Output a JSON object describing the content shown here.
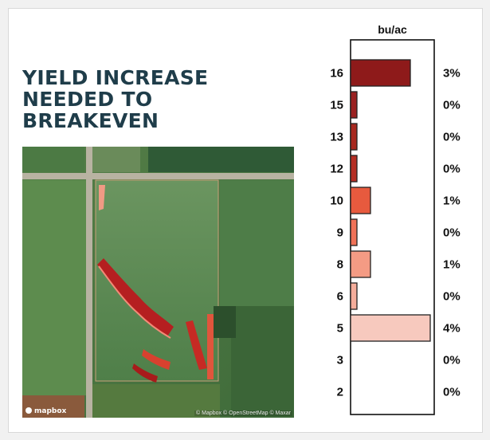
{
  "title": {
    "line1": "YIELD INCREASE",
    "line2": "NEEDED TO",
    "line3": "BREAKEVEN"
  },
  "map": {
    "logo": "mapbox",
    "attribution": "© Mapbox © OpenStreetMap © Maxar"
  },
  "colors": {
    "title": "#1f3d4a",
    "field_dark": "#3f6a3a",
    "field_light": "#5e8e4f",
    "overlay_dark": "#9e1c1c",
    "overlay_light": "#f4a38e"
  },
  "chart_data": {
    "type": "bar",
    "orientation": "horizontal",
    "unit_label": "bu/ac",
    "categories": [
      "16",
      "15",
      "13",
      "12",
      "10",
      "9",
      "8",
      "6",
      "5",
      "3",
      "2"
    ],
    "values": [
      3,
      0,
      0,
      0,
      1,
      0,
      1,
      0,
      4,
      0,
      0
    ],
    "value_labels": [
      "3%",
      "0%",
      "0%",
      "0%",
      "1%",
      "0%",
      "1%",
      "0%",
      "4%",
      "0%",
      "0%"
    ],
    "colors": [
      "#8e1a1a",
      "#9a2020",
      "#a8281f",
      "#b52e24",
      "#e75a3e",
      "#f07258",
      "#f49b84",
      "#f5ad9b",
      "#f7c9be",
      "#ffffff",
      "#ffffff"
    ],
    "xlim": [
      0,
      4.2
    ],
    "grid": false,
    "legend": "none"
  }
}
